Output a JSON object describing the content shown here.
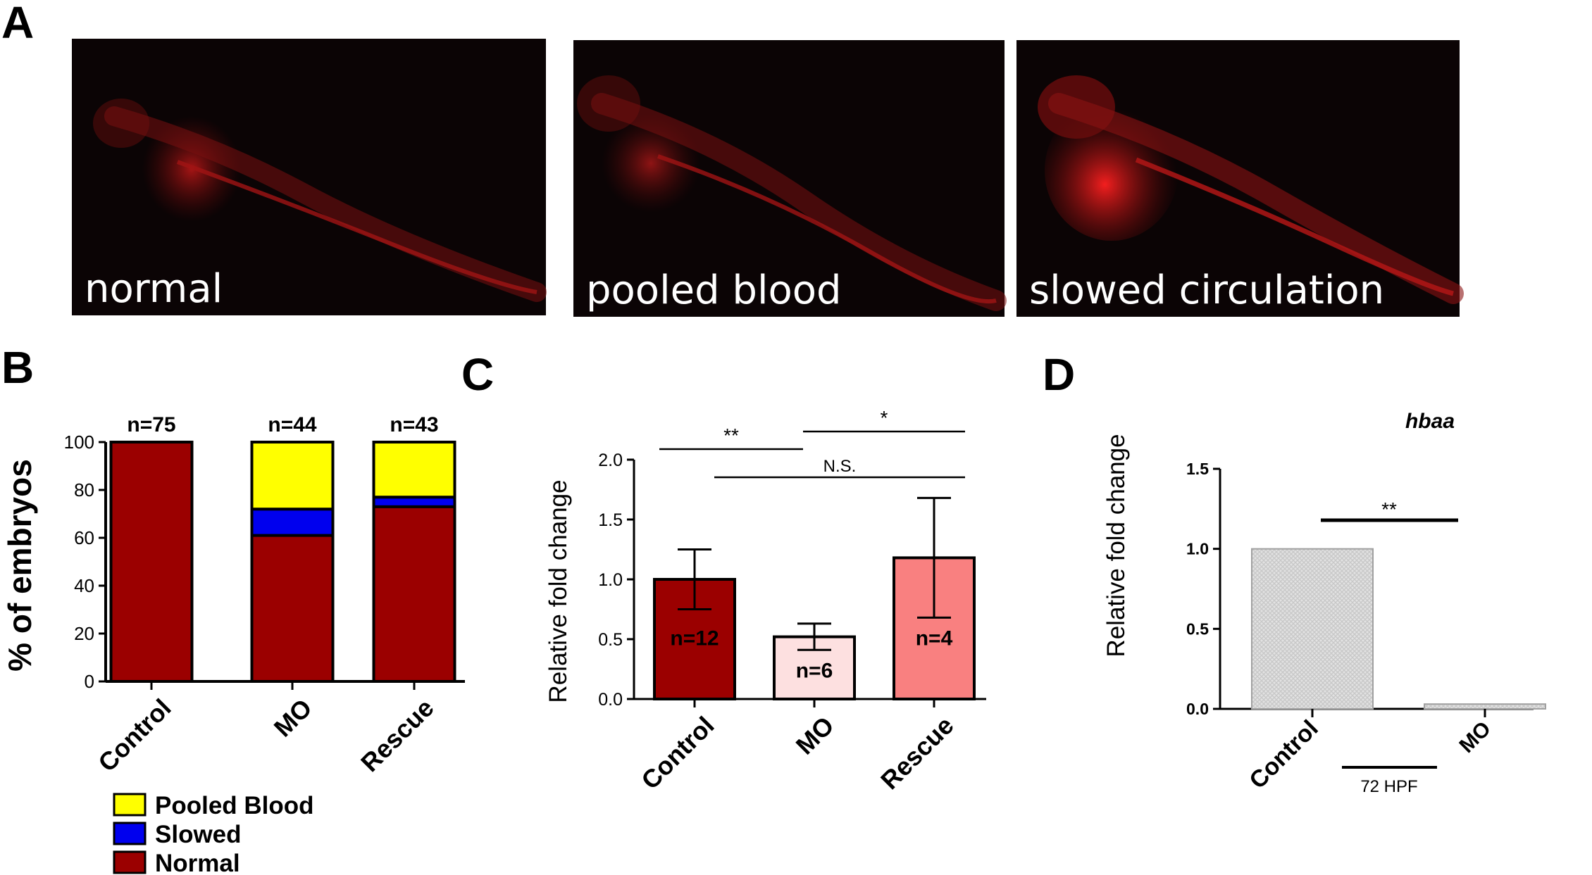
{
  "panels": {
    "a": "A",
    "b": "B",
    "c": "C",
    "d": "D"
  },
  "micrographs": [
    {
      "label": "normal"
    },
    {
      "label": "pooled blood"
    },
    {
      "label": "slowed circulation"
    }
  ],
  "colors": {
    "pooled": "#ffff00",
    "slowed": "#0000ee",
    "normal": "#9b0000",
    "mo_bar": "#fde0e0",
    "rescue_bar": "#f98080",
    "hatched": "#c8c8c8"
  },
  "chart_data": [
    {
      "id": "B",
      "type": "bar",
      "stacked": true,
      "ylabel": "%  of embryos",
      "ylim": [
        0,
        100
      ],
      "yticks": [
        0,
        20,
        40,
        60,
        80,
        100
      ],
      "categories": [
        "Control",
        "MO",
        "Rescue"
      ],
      "n_labels": [
        "n=75",
        "n=44",
        "n=43"
      ],
      "series": [
        {
          "name": "Normal",
          "values": [
            100,
            61,
            73
          ]
        },
        {
          "name": "Slowed",
          "values": [
            0,
            11,
            4
          ]
        },
        {
          "name": "Pooled Blood",
          "values": [
            0,
            28,
            23
          ]
        }
      ],
      "legend_order": [
        "Pooled Blood",
        "Slowed",
        "Normal"
      ],
      "legend": "bottom"
    },
    {
      "id": "C",
      "type": "bar",
      "ylabel": "Relative fold change",
      "ylim": [
        0,
        2.0
      ],
      "yticks": [
        "0.0",
        "0.5",
        "1.0",
        "1.5",
        "2.0"
      ],
      "categories": [
        "Control",
        "MO",
        "Rescue"
      ],
      "values": [
        1.0,
        0.52,
        1.18
      ],
      "errors": [
        0.25,
        0.11,
        0.5
      ],
      "n_labels": [
        "n=12",
        "n=6",
        "n=4"
      ],
      "significance": [
        {
          "from": "Control",
          "to": "MO",
          "label": "**"
        },
        {
          "from": "MO",
          "to": "Rescue",
          "label": "*"
        },
        {
          "from": "Control",
          "to": "Rescue",
          "label": "N.S."
        }
      ]
    },
    {
      "id": "D",
      "type": "bar",
      "title": "hbaa",
      "ylabel": "Relative fold change",
      "ylim": [
        0,
        1.5
      ],
      "yticks": [
        "0.0",
        "0.5",
        "1.0",
        "1.5"
      ],
      "categories": [
        "Control",
        "MO"
      ],
      "values": [
        1.0,
        0.03
      ],
      "significance": [
        {
          "from": "Control",
          "to": "MO",
          "label": "**"
        }
      ],
      "group_label": "72 HPF"
    }
  ]
}
